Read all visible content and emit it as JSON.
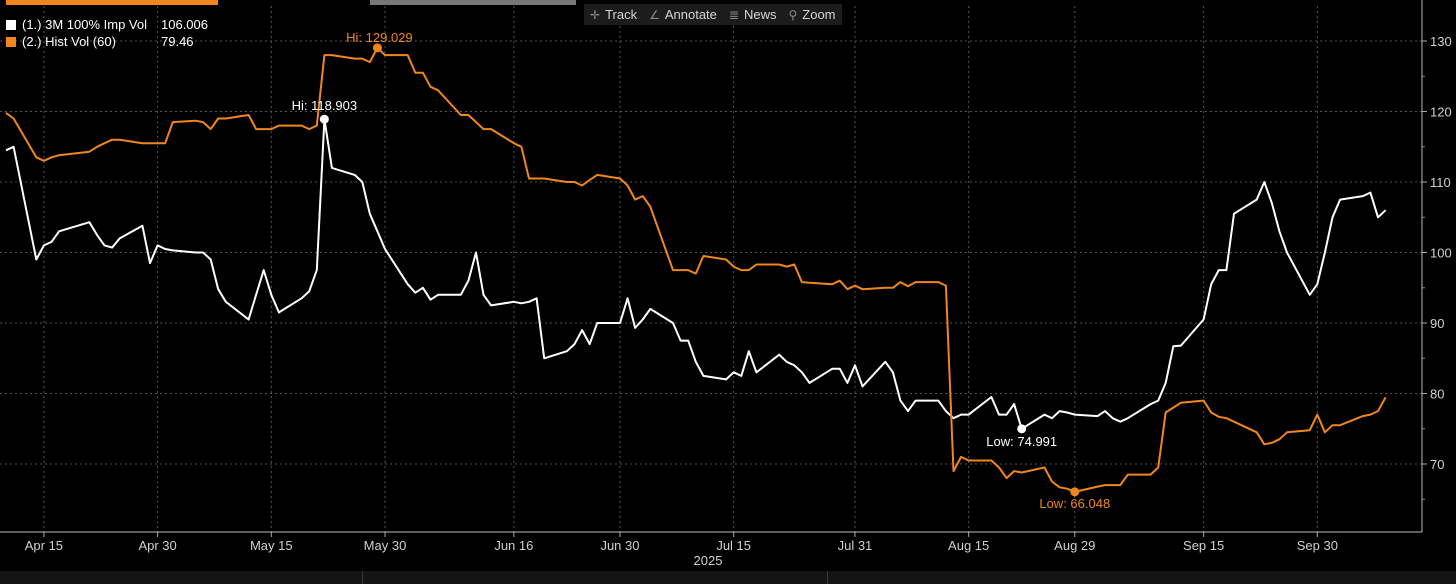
{
  "toolbar": {
    "track": "Track",
    "annotate": "Annotate",
    "news": "News",
    "zoom": "Zoom"
  },
  "legend": [
    {
      "label": "(1.) 3M 100% Imp Vol",
      "value": "106.006",
      "color": "#ffffff"
    },
    {
      "label": "(2.) Hist Vol (60)",
      "value": "79.46",
      "color": "#f0861e"
    }
  ],
  "chart_data": {
    "type": "line",
    "x_ticks": [
      "Apr 15",
      "Apr 30",
      "May 15",
      "May 30",
      "Jun 16",
      "Jun 30",
      "Jul 15",
      "Jul 31",
      "Aug 15",
      "Aug 29",
      "Sep 15",
      "Sep 30"
    ],
    "year_label": "2025",
    "y_ticks": [
      70,
      80,
      90,
      100,
      110,
      120,
      130
    ],
    "ylim": [
      60,
      135
    ],
    "grid": true,
    "y_axis_side": "right",
    "series": [
      {
        "name": "(1.) 3M 100% Imp Vol",
        "color": "#ffffff",
        "points": [
          [
            "2025-04-10",
            114.5
          ],
          [
            "2025-04-11",
            115.0
          ],
          [
            "2025-04-14",
            99.0
          ],
          [
            "2025-04-15",
            101.0
          ],
          [
            "2025-04-16",
            101.5
          ],
          [
            "2025-04-17",
            103.0
          ],
          [
            "2025-04-21",
            104.3
          ],
          [
            "2025-04-22",
            102.5
          ],
          [
            "2025-04-23",
            101.0
          ],
          [
            "2025-04-24",
            100.7
          ],
          [
            "2025-04-25",
            102.0
          ],
          [
            "2025-04-28",
            103.8
          ],
          [
            "2025-04-29",
            98.5
          ],
          [
            "2025-04-30",
            101.0
          ],
          [
            "2025-05-01",
            100.5
          ],
          [
            "2025-05-02",
            100.3
          ],
          [
            "2025-05-05",
            100.0
          ],
          [
            "2025-05-06",
            100.0
          ],
          [
            "2025-05-07",
            99.0
          ],
          [
            "2025-05-08",
            94.8
          ],
          [
            "2025-05-09",
            93.0
          ],
          [
            "2025-05-12",
            90.5
          ],
          [
            "2025-05-13",
            94.0
          ],
          [
            "2025-05-14",
            97.5
          ],
          [
            "2025-05-15",
            94.0
          ],
          [
            "2025-05-16",
            91.5
          ],
          [
            "2025-05-19",
            93.5
          ],
          [
            "2025-05-20",
            94.5
          ],
          [
            "2025-05-21",
            97.5
          ],
          [
            "2025-05-22",
            118.903
          ],
          [
            "2025-05-23",
            112.0
          ],
          [
            "2025-05-26",
            111.0
          ],
          [
            "2025-05-27",
            110.0
          ],
          [
            "2025-05-28",
            105.5
          ],
          [
            "2025-05-29",
            103.0
          ],
          [
            "2025-05-30",
            100.5
          ],
          [
            "2025-06-02",
            95.5
          ],
          [
            "2025-06-03",
            94.3
          ],
          [
            "2025-06-04",
            95.0
          ],
          [
            "2025-06-05",
            93.3
          ],
          [
            "2025-06-06",
            94.0
          ],
          [
            "2025-06-09",
            94.0
          ],
          [
            "2025-06-10",
            96.0
          ],
          [
            "2025-06-11",
            100.0
          ],
          [
            "2025-06-12",
            94.0
          ],
          [
            "2025-06-13",
            92.5
          ],
          [
            "2025-06-16",
            93.0
          ],
          [
            "2025-06-17",
            92.8
          ],
          [
            "2025-06-18",
            93.0
          ],
          [
            "2025-06-19",
            93.5
          ],
          [
            "2025-06-20",
            85.0
          ],
          [
            "2025-06-23",
            86.0
          ],
          [
            "2025-06-24",
            87.0
          ],
          [
            "2025-06-25",
            89.0
          ],
          [
            "2025-06-26",
            87.0
          ],
          [
            "2025-06-27",
            90.0
          ],
          [
            "2025-06-30",
            90.0
          ],
          [
            "2025-07-01",
            93.5
          ],
          [
            "2025-07-02",
            89.3
          ],
          [
            "2025-07-03",
            90.5
          ],
          [
            "2025-07-04",
            92.0
          ],
          [
            "2025-07-07",
            90.0
          ],
          [
            "2025-07-08",
            87.5
          ],
          [
            "2025-07-09",
            87.5
          ],
          [
            "2025-07-10",
            84.5
          ],
          [
            "2025-07-11",
            82.5
          ],
          [
            "2025-07-14",
            82.0
          ],
          [
            "2025-07-15",
            83.0
          ],
          [
            "2025-07-16",
            82.5
          ],
          [
            "2025-07-17",
            86.0
          ],
          [
            "2025-07-18",
            83.0
          ],
          [
            "2025-07-21",
            85.5
          ],
          [
            "2025-07-22",
            84.5
          ],
          [
            "2025-07-23",
            84.0
          ],
          [
            "2025-07-24",
            83.0
          ],
          [
            "2025-07-25",
            81.5
          ],
          [
            "2025-07-28",
            83.5
          ],
          [
            "2025-07-29",
            83.5
          ],
          [
            "2025-07-30",
            81.5
          ],
          [
            "2025-07-31",
            84.0
          ],
          [
            "2025-08-01",
            81.0
          ],
          [
            "2025-08-04",
            84.5
          ],
          [
            "2025-08-05",
            83.0
          ],
          [
            "2025-08-06",
            79.0
          ],
          [
            "2025-08-07",
            77.5
          ],
          [
            "2025-08-08",
            79.0
          ],
          [
            "2025-08-11",
            79.0
          ],
          [
            "2025-08-12",
            77.5
          ],
          [
            "2025-08-13",
            76.5
          ],
          [
            "2025-08-14",
            77.0
          ],
          [
            "2025-08-15",
            77.0
          ],
          [
            "2025-08-18",
            79.5
          ],
          [
            "2025-08-19",
            77.0
          ],
          [
            "2025-08-20",
            77.0
          ],
          [
            "2025-08-21",
            78.5
          ],
          [
            "2025-08-22",
            74.991
          ],
          [
            "2025-08-25",
            77.0
          ],
          [
            "2025-08-26",
            76.5
          ],
          [
            "2025-08-27",
            77.5
          ],
          [
            "2025-08-28",
            77.3
          ],
          [
            "2025-08-29",
            77.0
          ],
          [
            "2025-09-01",
            76.8
          ],
          [
            "2025-09-02",
            77.5
          ],
          [
            "2025-09-03",
            76.5
          ],
          [
            "2025-09-04",
            76.0
          ],
          [
            "2025-09-05",
            76.5
          ],
          [
            "2025-09-08",
            78.5
          ],
          [
            "2025-09-09",
            79.0
          ],
          [
            "2025-09-10",
            81.5
          ],
          [
            "2025-09-11",
            86.7
          ],
          [
            "2025-09-12",
            86.8
          ],
          [
            "2025-09-15",
            90.5
          ],
          [
            "2025-09-16",
            95.5
          ],
          [
            "2025-09-17",
            97.5
          ],
          [
            "2025-09-18",
            97.5
          ],
          [
            "2025-09-19",
            105.5
          ],
          [
            "2025-09-22",
            107.5
          ],
          [
            "2025-09-23",
            110.0
          ],
          [
            "2025-09-24",
            107.0
          ],
          [
            "2025-09-25",
            103.0
          ],
          [
            "2025-09-26",
            100.0
          ],
          [
            "2025-09-29",
            94.0
          ],
          [
            "2025-09-30",
            95.5
          ],
          [
            "2025-10-01",
            100.0
          ],
          [
            "2025-10-02",
            105.0
          ],
          [
            "2025-10-03",
            107.5
          ],
          [
            "2025-10-06",
            108.0
          ],
          [
            "2025-10-07",
            108.5
          ],
          [
            "2025-10-08",
            105.0
          ],
          [
            "2025-10-09",
            106.006
          ]
        ],
        "hi": {
          "label": "Hi: 118.903",
          "date": "2025-05-22",
          "value": 118.903
        },
        "low": {
          "label": "Low: 74.991",
          "date": "2025-08-22",
          "value": 74.991
        }
      },
      {
        "name": "(2.) Hist Vol (60)",
        "color": "#f0861e",
        "points": [
          [
            "2025-04-10",
            119.8
          ],
          [
            "2025-04-11",
            119.0
          ],
          [
            "2025-04-14",
            113.5
          ],
          [
            "2025-04-15",
            113.0
          ],
          [
            "2025-04-16",
            113.5
          ],
          [
            "2025-04-17",
            113.8
          ],
          [
            "2025-04-21",
            114.3
          ],
          [
            "2025-04-22",
            115.0
          ],
          [
            "2025-04-23",
            115.5
          ],
          [
            "2025-04-24",
            116.0
          ],
          [
            "2025-04-25",
            116.0
          ],
          [
            "2025-04-28",
            115.5
          ],
          [
            "2025-04-29",
            115.5
          ],
          [
            "2025-04-30",
            115.5
          ],
          [
            "2025-05-01",
            115.5
          ],
          [
            "2025-05-02",
            118.5
          ],
          [
            "2025-05-05",
            118.7
          ],
          [
            "2025-05-06",
            118.5
          ],
          [
            "2025-05-07",
            117.5
          ],
          [
            "2025-05-08",
            119.0
          ],
          [
            "2025-05-09",
            119.0
          ],
          [
            "2025-05-12",
            119.5
          ],
          [
            "2025-05-13",
            117.5
          ],
          [
            "2025-05-14",
            117.5
          ],
          [
            "2025-05-15",
            117.5
          ],
          [
            "2025-05-16",
            118.0
          ],
          [
            "2025-05-19",
            118.0
          ],
          [
            "2025-05-20",
            117.5
          ],
          [
            "2025-05-21",
            118.0
          ],
          [
            "2025-05-22",
            128.0
          ],
          [
            "2025-05-23",
            128.0
          ],
          [
            "2025-05-26",
            127.5
          ],
          [
            "2025-05-27",
            127.5
          ],
          [
            "2025-05-28",
            127.0
          ],
          [
            "2025-05-29",
            129.029
          ],
          [
            "2025-05-30",
            128.0
          ],
          [
            "2025-06-02",
            128.0
          ],
          [
            "2025-06-03",
            125.5
          ],
          [
            "2025-06-04",
            125.5
          ],
          [
            "2025-06-05",
            123.5
          ],
          [
            "2025-06-06",
            123.0
          ],
          [
            "2025-06-09",
            119.5
          ],
          [
            "2025-06-10",
            119.5
          ],
          [
            "2025-06-11",
            118.5
          ],
          [
            "2025-06-12",
            117.5
          ],
          [
            "2025-06-13",
            117.5
          ],
          [
            "2025-06-16",
            115.5
          ],
          [
            "2025-06-17",
            115.0
          ],
          [
            "2025-06-18",
            110.5
          ],
          [
            "2025-06-19",
            110.5
          ],
          [
            "2025-06-20",
            110.5
          ],
          [
            "2025-06-23",
            110.0
          ],
          [
            "2025-06-24",
            110.0
          ],
          [
            "2025-06-25",
            109.5
          ],
          [
            "2025-06-26",
            110.3
          ],
          [
            "2025-06-27",
            111.0
          ],
          [
            "2025-06-30",
            110.5
          ],
          [
            "2025-07-01",
            109.5
          ],
          [
            "2025-07-02",
            107.5
          ],
          [
            "2025-07-03",
            108.0
          ],
          [
            "2025-07-04",
            106.5
          ],
          [
            "2025-07-07",
            97.5
          ],
          [
            "2025-07-08",
            97.5
          ],
          [
            "2025-07-09",
            97.5
          ],
          [
            "2025-07-10",
            97.0
          ],
          [
            "2025-07-11",
            99.5
          ],
          [
            "2025-07-14",
            99.0
          ],
          [
            "2025-07-15",
            98.0
          ],
          [
            "2025-07-16",
            97.5
          ],
          [
            "2025-07-17",
            97.5
          ],
          [
            "2025-07-18",
            98.3
          ],
          [
            "2025-07-21",
            98.3
          ],
          [
            "2025-07-22",
            98.0
          ],
          [
            "2025-07-23",
            98.3
          ],
          [
            "2025-07-24",
            95.8
          ],
          [
            "2025-07-25",
            95.7
          ],
          [
            "2025-07-28",
            95.5
          ],
          [
            "2025-07-29",
            96.0
          ],
          [
            "2025-07-30",
            94.8
          ],
          [
            "2025-07-31",
            95.3
          ],
          [
            "2025-08-01",
            94.8
          ],
          [
            "2025-08-04",
            95.0
          ],
          [
            "2025-08-05",
            95.0
          ],
          [
            "2025-08-06",
            95.8
          ],
          [
            "2025-08-07",
            95.2
          ],
          [
            "2025-08-08",
            95.8
          ],
          [
            "2025-08-11",
            95.8
          ],
          [
            "2025-08-12",
            95.3
          ],
          [
            "2025-08-13",
            69.0
          ],
          [
            "2025-08-14",
            71.0
          ],
          [
            "2025-08-15",
            70.5
          ],
          [
            "2025-08-18",
            70.5
          ],
          [
            "2025-08-19",
            69.5
          ],
          [
            "2025-08-20",
            68.0
          ],
          [
            "2025-08-21",
            69.0
          ],
          [
            "2025-08-22",
            68.8
          ],
          [
            "2025-08-25",
            69.5
          ],
          [
            "2025-08-26",
            67.5
          ],
          [
            "2025-08-27",
            66.7
          ],
          [
            "2025-08-28",
            66.5
          ],
          [
            "2025-08-29",
            66.048
          ],
          [
            "2025-09-01",
            66.8
          ],
          [
            "2025-09-02",
            67.0
          ],
          [
            "2025-09-03",
            67.0
          ],
          [
            "2025-09-04",
            67.0
          ],
          [
            "2025-09-05",
            68.5
          ],
          [
            "2025-09-08",
            68.5
          ],
          [
            "2025-09-09",
            69.5
          ],
          [
            "2025-09-10",
            77.3
          ],
          [
            "2025-09-11",
            78.0
          ],
          [
            "2025-09-12",
            78.7
          ],
          [
            "2025-09-15",
            79.0
          ],
          [
            "2025-09-16",
            77.3
          ],
          [
            "2025-09-17",
            76.7
          ],
          [
            "2025-09-18",
            76.5
          ],
          [
            "2025-09-19",
            76.0
          ],
          [
            "2025-09-22",
            74.5
          ],
          [
            "2025-09-23",
            72.8
          ],
          [
            "2025-09-24",
            73.0
          ],
          [
            "2025-09-25",
            73.5
          ],
          [
            "2025-09-26",
            74.5
          ],
          [
            "2025-09-29",
            74.8
          ],
          [
            "2025-09-30",
            77.0
          ],
          [
            "2025-10-01",
            74.5
          ],
          [
            "2025-10-02",
            75.5
          ],
          [
            "2025-10-03",
            75.5
          ],
          [
            "2025-10-06",
            76.8
          ],
          [
            "2025-10-07",
            77.0
          ],
          [
            "2025-10-08",
            77.5
          ],
          [
            "2025-10-09",
            79.46
          ]
        ],
        "hi": {
          "label": "Hi: 129.029",
          "date": "2025-05-29",
          "value": 129.029
        },
        "low": {
          "label": "Low: 66.048",
          "date": "2025-08-29",
          "value": 66.048
        }
      }
    ]
  }
}
